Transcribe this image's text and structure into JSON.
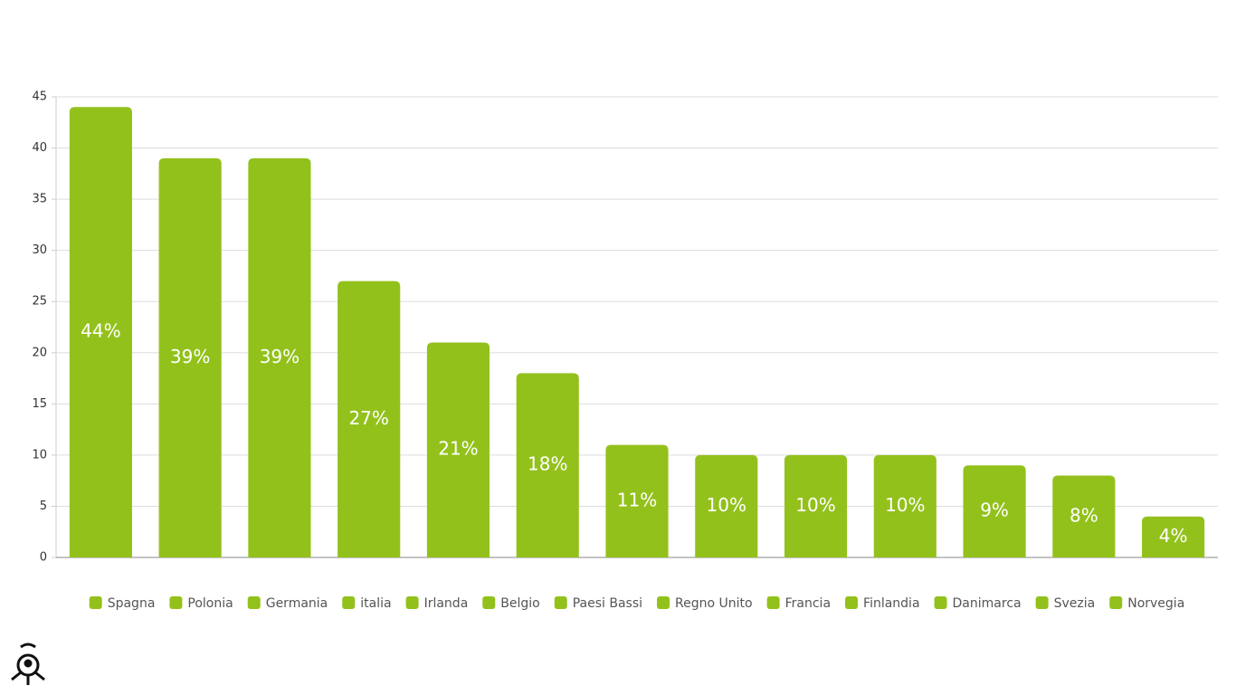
{
  "chart_data": {
    "type": "bar",
    "categories": [
      "Spagna",
      "Polonia",
      "Germania",
      "italia",
      "Irlanda",
      "Belgio",
      "Paesi Bassi",
      "Regno Unito",
      "Francia",
      "Finlandia",
      "Danimarca",
      "Svezia",
      "Norvegia"
    ],
    "values": [
      44,
      39,
      39,
      27,
      21,
      18,
      11,
      10,
      10,
      10,
      9,
      8,
      4
    ],
    "value_labels": [
      "44%",
      "39%",
      "39%",
      "27%",
      "21%",
      "18%",
      "11%",
      "10%",
      "10%",
      "10%",
      "9%",
      "8%",
      "4%"
    ],
    "color": "#93c11c",
    "ylim": [
      0,
      45
    ],
    "yticks": [
      0,
      5,
      10,
      15,
      20,
      25,
      30,
      35,
      40,
      45
    ],
    "grid": true
  }
}
